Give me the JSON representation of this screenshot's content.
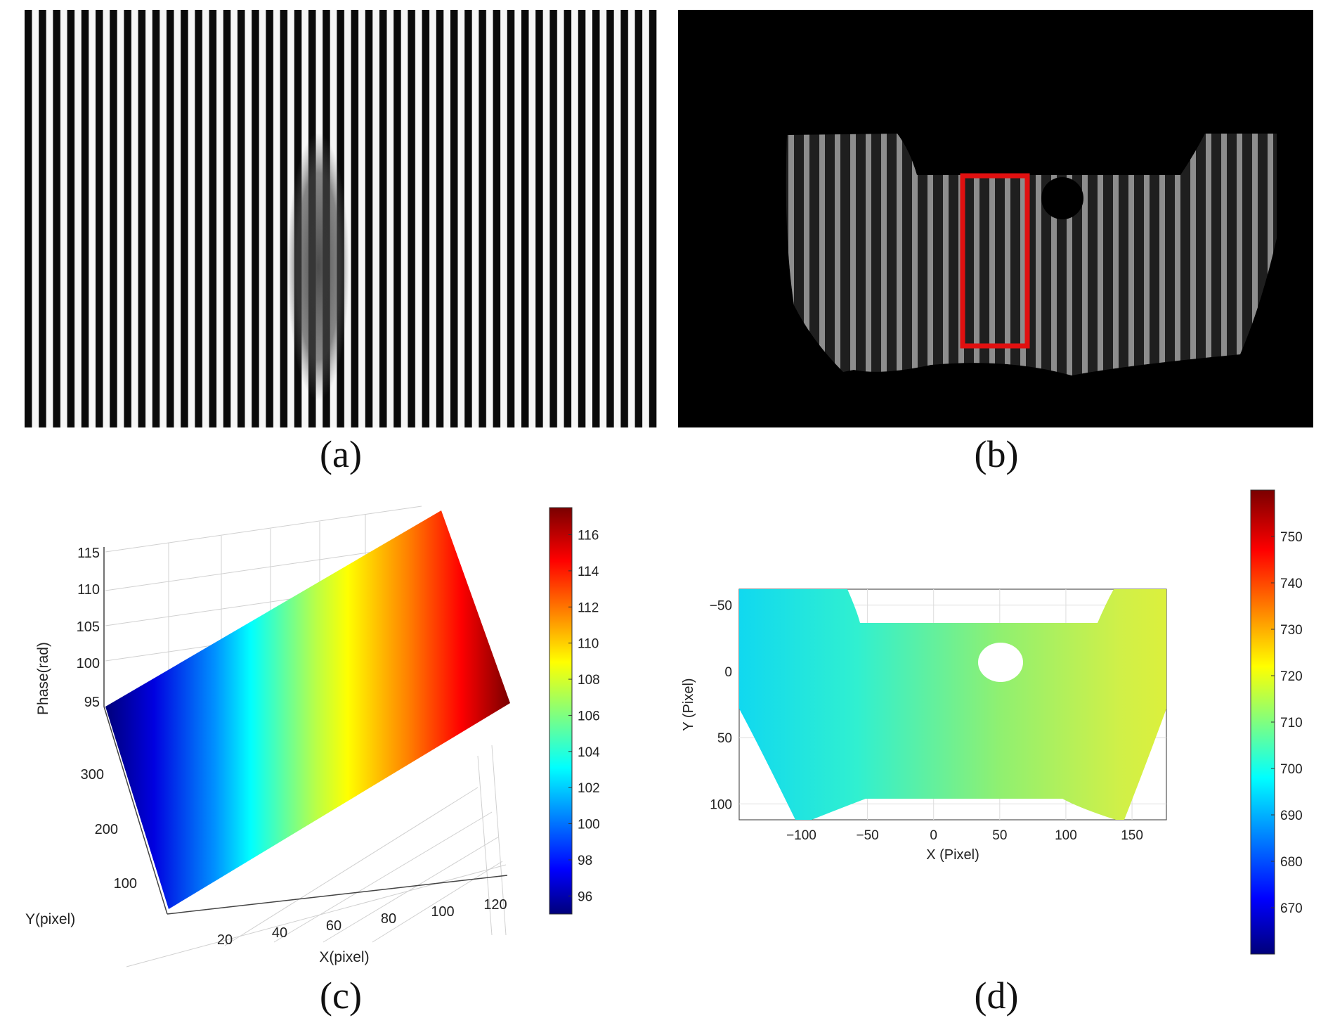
{
  "captions": {
    "a": "(a)",
    "b": "(b)",
    "c": "(c)",
    "d": "(d)"
  },
  "chart_data": [
    {
      "type": "image",
      "panel": "a",
      "description_label": "(a)"
    },
    {
      "type": "image",
      "panel": "b",
      "label": "(b)",
      "highlight_color": "#e01010"
    },
    {
      "type": "surface",
      "panel": "c",
      "xlabel": "X(pixel)",
      "ylabel": "Y(pixel)",
      "zlabel": "Phase(rad)",
      "xticks": [
        20,
        40,
        60,
        80,
        100,
        120
      ],
      "yticks": [
        100,
        200,
        300
      ],
      "zticks": [
        95,
        100,
        105,
        110,
        115
      ],
      "colorbar": {
        "min": 95,
        "max": 117.5,
        "ticks": [
          96,
          98,
          100,
          102,
          104,
          106,
          108,
          110,
          112,
          114,
          116
        ]
      },
      "colormap": "jet"
    },
    {
      "type": "heatmap",
      "panel": "d",
      "xlabel": "X (Pixel)",
      "ylabel": "Y (Pixel)",
      "xticks": [
        -100,
        -50,
        0,
        50,
        100,
        150
      ],
      "yticks": [
        -50,
        0,
        50,
        100
      ],
      "xlim": [
        -147,
        176
      ],
      "ylim": [
        -62,
        112
      ],
      "colorbar": {
        "min": 660,
        "max": 760,
        "ticks": [
          670,
          680,
          690,
          700,
          710,
          720,
          730,
          740,
          750
        ]
      },
      "colormap": "jet"
    }
  ]
}
